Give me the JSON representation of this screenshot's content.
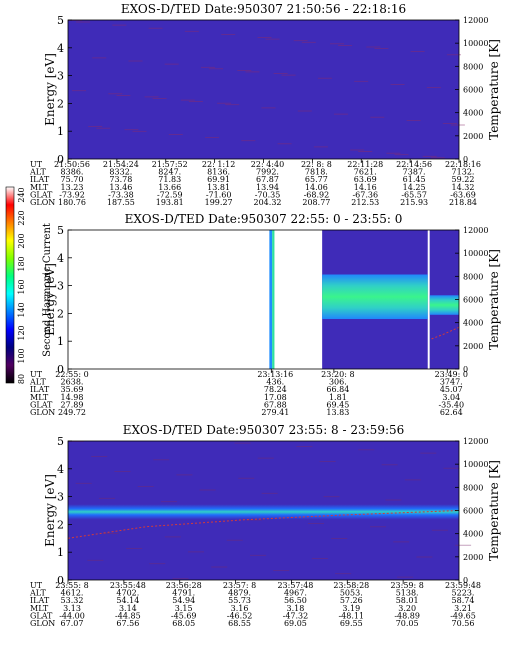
{
  "colors": {
    "background": "#ffffff",
    "axis": "#000000",
    "no_data": "#ffffff",
    "overlay_line": "#d23a3a",
    "heat_low": "#3f2bb8",
    "heat_mid": "#1f8cff",
    "heat_peak": "#3aff8a"
  },
  "colorbar": {
    "label": "Second Harmonic Current",
    "tick_labels": [
      "240",
      "220",
      "200",
      "180",
      "160",
      "140",
      "120",
      "100",
      "80"
    ],
    "stops": [
      "#ffffff",
      "#ff0000",
      "#ff8000",
      "#ffff00",
      "#80ff00",
      "#00ff80",
      "#00ffff",
      "#0080ff",
      "#0000ff",
      "#000080",
      "#500060",
      "#000000"
    ]
  },
  "chart_data": [
    {
      "type": "heatmap",
      "title": "EXOS-D/TED   Date:950307  21:50:56 - 22:18:16",
      "ylabel": "Energy [eV]",
      "ylabel2": "Temperature [K]",
      "ylim": [
        0,
        5
      ],
      "y2lim": [
        0,
        12000
      ],
      "yticks": [
        "0",
        "1",
        "2",
        "3",
        "4",
        "5"
      ],
      "y2ticks": [
        "0",
        "2000",
        "4000",
        "6000",
        "8000",
        "10000",
        "12000"
      ],
      "orbit": {
        "row_labels": [
          "UT",
          "ALT",
          "ILAT",
          "MLT",
          "GLAT",
          "GLON"
        ],
        "columns": [
          [
            "21:50:56",
            "8386.",
            "75.70",
            "13.23",
            "-73.92",
            "180.76"
          ],
          [
            "21:54:24",
            "8332.",
            "73.78",
            "13.46",
            "-73.38",
            "187.55"
          ],
          [
            "21:57:52",
            "8247.",
            "71.83",
            "13.66",
            "-72.59",
            "193.81"
          ],
          [
            "22: 1:12",
            "8136.",
            "69.91",
            "13.81",
            "-71.60",
            "199.27"
          ],
          [
            "22: 4:40",
            "7992.",
            "67.87",
            "13.94",
            "-70.35",
            "204.32"
          ],
          [
            "22: 8: 8",
            "7818.",
            "65.77",
            "14.06",
            "-68.92",
            "208.77"
          ],
          [
            "22:11:28",
            "7621.",
            "63.69",
            "14.16",
            "-67.36",
            "212.53"
          ],
          [
            "22:14:56",
            "7387.",
            "61.45",
            "14.25",
            "-65.57",
            "215.93"
          ],
          [
            "22:18:16",
            "7132.",
            "59.22",
            "14.32",
            "-63.69",
            "218.84"
          ]
        ]
      },
      "segments": [
        {
          "x0": 0.0,
          "x1": 1.0,
          "profile": "uniform",
          "level": 0.12
        }
      ],
      "overlay": []
    },
    {
      "type": "heatmap",
      "title": "EXOS-D/TED   Date:950307  22:55: 0 - 23:55: 0",
      "ylabel": "Energy [eV]",
      "ylabel2": "Temperature [K]",
      "ylim": [
        0,
        5
      ],
      "y2lim": [
        0,
        12000
      ],
      "yticks": [
        "0",
        "1",
        "2",
        "3",
        "4",
        "5"
      ],
      "y2ticks": [
        "0",
        "2000",
        "4000",
        "6000",
        "8000",
        "10000",
        "12000"
      ],
      "orbit": {
        "row_labels": [
          "UT",
          "ALT",
          "ILAT",
          "MLT",
          "GLAT",
          "GLON"
        ],
        "columns": [
          [
            "22:55: 0",
            "2638.",
            "35.69",
            "14.98",
            "27.89",
            "249.72"
          ],
          [
            "23:13:16",
            "436.",
            "78.24",
            "17.08",
            "67.88",
            "279.41"
          ],
          [
            "23:20: 8",
            "306.",
            "66.84",
            "1.81",
            "69.45",
            "13.83"
          ],
          [
            "23:49: 0",
            "3747.",
            "45.07",
            "3.04",
            "-35.40",
            "62.64"
          ]
        ],
        "column_positions": [
          0.0,
          0.52,
          0.68,
          0.97
        ]
      },
      "segments": [
        {
          "x0": 0.515,
          "x1": 0.522,
          "profile": "uniform",
          "level": 0.42
        },
        {
          "x0": 0.522,
          "x1": 0.528,
          "profile": "uniform",
          "level": 0.58
        },
        {
          "x0": 0.65,
          "x1": 0.92,
          "profile": "band",
          "center": 2.6,
          "width": 1.6,
          "level": 0.45
        },
        {
          "x0": 0.925,
          "x1": 1.0,
          "profile": "band",
          "center": 2.3,
          "width": 0.7,
          "level": 0.5
        }
      ],
      "overlay": [
        [
          0.93,
          2600
        ],
        [
          0.96,
          3000
        ],
        [
          1.0,
          3600
        ]
      ]
    },
    {
      "type": "heatmap",
      "title": "EXOS-D/TED   Date:950307  23:55: 8 - 23:59:56",
      "ylabel": "Energy [eV]",
      "ylabel2": "Temperature [K]",
      "ylim": [
        0,
        5
      ],
      "y2lim": [
        0,
        12000
      ],
      "yticks": [
        "0",
        "1",
        "2",
        "3",
        "4",
        "5"
      ],
      "y2ticks": [
        "0",
        "2000",
        "4000",
        "6000",
        "8000",
        "10000",
        "12000"
      ],
      "orbit": {
        "row_labels": [
          "UT",
          "ALT",
          "ILAT",
          "MLT",
          "GLAT",
          "GLON"
        ],
        "columns": [
          [
            "23:55: 8",
            "4612.",
            "53.32",
            "3.13",
            "-44.00",
            "67.07"
          ],
          [
            "23:55:48",
            "4702.",
            "54.14",
            "3.14",
            "-44.85",
            "67.56"
          ],
          [
            "23:56:28",
            "4791.",
            "54.94",
            "3.15",
            "-45.69",
            "68.05"
          ],
          [
            "23:57: 8",
            "4879.",
            "55.73",
            "3.16",
            "-46.52",
            "68.55"
          ],
          [
            "23:57:48",
            "4967.",
            "56.50",
            "3.18",
            "-47.32",
            "69.05"
          ],
          [
            "23:58:28",
            "5053.",
            "57.26",
            "3.19",
            "-48.11",
            "69.55"
          ],
          [
            "23:59: 8",
            "5138.",
            "58.01",
            "3.20",
            "-48.89",
            "70.05"
          ],
          [
            "23:59:48",
            "5223.",
            "58.74",
            "3.21",
            "-49.65",
            "70.56"
          ]
        ]
      },
      "segments": [
        {
          "x0": 0.0,
          "x1": 1.0,
          "profile": "band",
          "center": 2.45,
          "width": 0.55,
          "level": 0.32
        }
      ],
      "overlay": [
        [
          0.0,
          3600
        ],
        [
          0.2,
          4600
        ],
        [
          0.45,
          5200
        ],
        [
          0.7,
          5600
        ],
        [
          1.0,
          6000
        ]
      ]
    }
  ]
}
